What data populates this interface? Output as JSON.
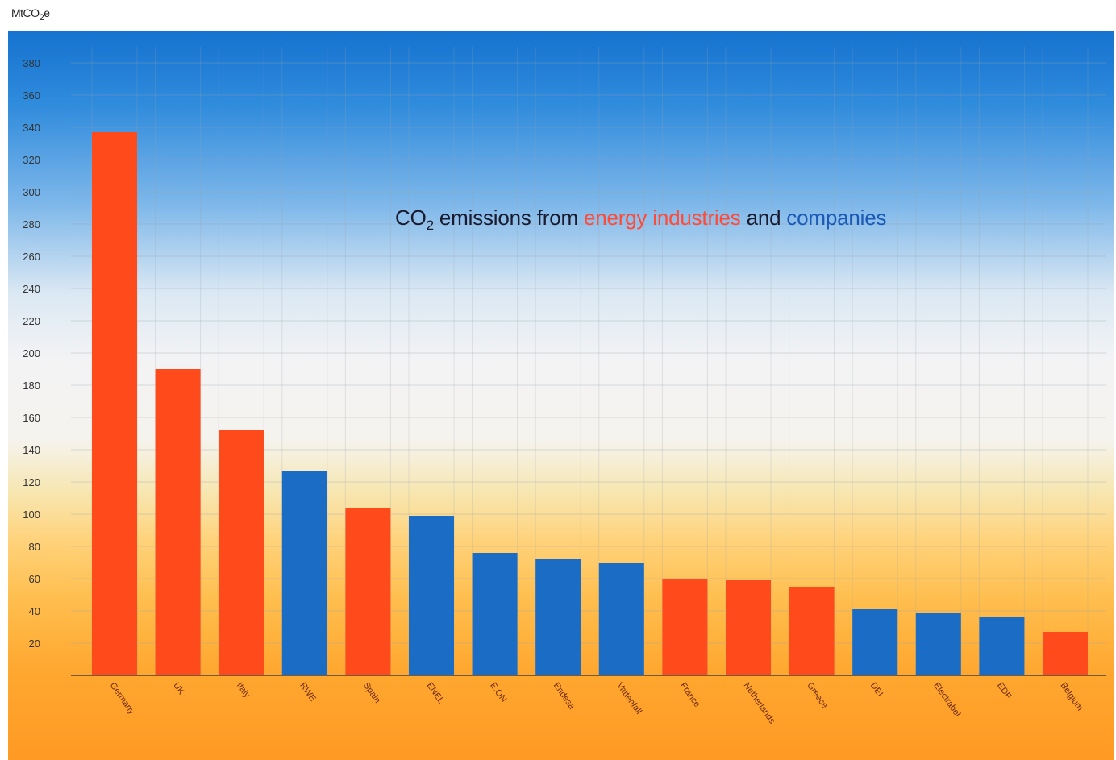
{
  "colors": {
    "company_bar": "#1a6cc4",
    "country_bar": "#ff4a1c",
    "title_red": "#ff4a38",
    "title_blue": "#1b59b5",
    "axis_line": "#444444"
  },
  "title": {
    "co": "CO",
    "sub": "2",
    "part1": " emissions from ",
    "part_red": "energy industries",
    "part_mid": " and ",
    "part_blue": "companies"
  },
  "ylabel": {
    "main": "MtCO",
    "sub": "2",
    "tail": "e"
  },
  "chart_data": {
    "type": "bar",
    "title": "CO2 emissions from energy industries and companies",
    "ylabel": "MtCO2e",
    "xlabel": "",
    "ylim": [
      0,
      390
    ],
    "yticks": [
      20,
      40,
      60,
      80,
      100,
      120,
      140,
      160,
      180,
      200,
      220,
      240,
      260,
      280,
      300,
      320,
      340,
      360,
      380
    ],
    "grid": true,
    "categories": [
      "Germany",
      "UK",
      "Italy",
      "RWE",
      "Spain",
      "ENEL",
      "E.ON",
      "Endesa",
      "Vattenfall",
      "France",
      "Netherlands",
      "Greece",
      "DEI",
      "Electrabel",
      "EDF",
      "Belgium"
    ],
    "values": [
      337,
      190,
      152,
      127,
      104,
      99,
      76,
      72,
      70,
      60,
      59,
      55,
      41,
      39,
      36,
      27
    ],
    "kind": [
      "energy industries",
      "energy industries",
      "energy industries",
      "companies",
      "energy industries",
      "companies",
      "companies",
      "companies",
      "companies",
      "energy industries",
      "energy industries",
      "energy industries",
      "companies",
      "companies",
      "companies",
      "energy industries"
    ]
  }
}
